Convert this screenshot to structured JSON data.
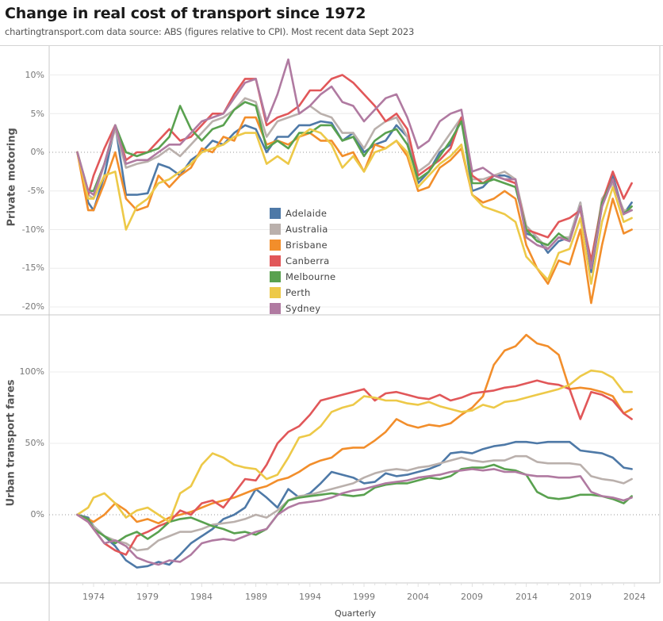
{
  "header": {
    "title": "Change in real cost of transport since 1972",
    "subtitle": "chartingtransport.com  data source: ABS (figures relative to CPI). Most recent data Sept 2023"
  },
  "chart_data": [
    {
      "type": "line",
      "title": "Private motoring",
      "ylabel": "Private motoring",
      "xlabel": "Quarterly",
      "ylim": [
        -20,
        12
      ],
      "yticks": [
        10,
        5,
        0,
        -5,
        -10,
        -15,
        -20
      ],
      "ytick_labels": [
        "10%",
        "5%",
        "0%",
        "-5%",
        "-10%",
        "-15%",
        "-20%"
      ],
      "grid": true,
      "legend_position": "center-bottom",
      "x": [
        1972.5,
        1973.5,
        1974,
        1975,
        1976,
        1977,
        1978,
        1979,
        1980,
        1981,
        1982,
        1983,
        1984,
        1985,
        1986,
        1987,
        1988,
        1989,
        1990,
        1991,
        1992,
        1993,
        1994,
        1995,
        1996,
        1997,
        1998,
        1999,
        2000,
        2001,
        2002,
        2003,
        2004,
        2005,
        2006,
        2007,
        2008,
        2009,
        2010,
        2011,
        2012,
        2013,
        2014,
        2015,
        2016,
        2017,
        2018,
        2019,
        2020,
        2021,
        2022,
        2023,
        2023.75
      ],
      "series": [
        {
          "name": "Adelaide",
          "color": "#4e79a7",
          "values": [
            0,
            -6.5,
            -7.5,
            -3,
            3.5,
            -5.5,
            -5.5,
            -5.3,
            -1.5,
            -2,
            -3,
            -1,
            0,
            1.5,
            1,
            2.5,
            3.5,
            3,
            0,
            2,
            2,
            3.5,
            3.5,
            4,
            3.8,
            1.5,
            2.5,
            0,
            1,
            1.5,
            3.5,
            2,
            -4,
            -2.5,
            0,
            1,
            4.5,
            -5,
            -4.5,
            -3,
            -3,
            -3.5,
            -10.5,
            -11,
            -13,
            -11.5,
            -11,
            -6.5,
            -15.5,
            -7,
            -3,
            -8,
            -6.5
          ]
        },
        {
          "name": "Australia",
          "color": "#bab0ac",
          "values": [
            0,
            -5.5,
            -6,
            -1.5,
            3,
            -2,
            -1.5,
            -1.2,
            -0.5,
            0.5,
            -0.5,
            1,
            2.5,
            4,
            4.5,
            5.5,
            7,
            6.5,
            2,
            4,
            4.5,
            5,
            6,
            5,
            4.5,
            2.5,
            2.5,
            0.5,
            3,
            4,
            4.5,
            2,
            -2.5,
            -1.5,
            0.5,
            2.5,
            4.5,
            -3.5,
            -3.5,
            -3,
            -2.5,
            -3.5,
            -9.5,
            -11,
            -12.5,
            -11,
            -11,
            -6.5,
            -15,
            -6,
            -4,
            -7.5,
            -7.5
          ]
        },
        {
          "name": "Brisbane",
          "color": "#f28e2b",
          "values": [
            0,
            -7.5,
            -7.5,
            -4,
            0,
            -6,
            -7.5,
            -7,
            -3,
            -4.5,
            -3,
            -2,
            0.5,
            0,
            2,
            1.5,
            4.5,
            4.5,
            1,
            1.5,
            1,
            2,
            2.5,
            1.5,
            1.5,
            -0.5,
            0,
            -2.5,
            1,
            0.5,
            1.5,
            -0.5,
            -5,
            -4.5,
            -2,
            -1,
            0.5,
            -5.5,
            -6.5,
            -6,
            -5,
            -6,
            -12,
            -15,
            -17,
            -14,
            -14.5,
            -10,
            -19.5,
            -12,
            -6,
            -10.5,
            -10
          ]
        },
        {
          "name": "Canberra",
          "color": "#e15759",
          "values": [
            0,
            -5.5,
            -3,
            0.5,
            3.5,
            -1,
            0,
            0,
            1.5,
            3,
            1.5,
            2,
            3.5,
            5,
            5,
            7.5,
            9.5,
            9.5,
            3.5,
            4.5,
            5,
            6,
            8,
            8,
            9.5,
            10,
            9,
            7.5,
            6,
            4,
            5,
            3,
            -3,
            -2,
            -1,
            0.5,
            4.5,
            -3,
            -4,
            -3,
            -3.5,
            -4,
            -10,
            -10.5,
            -11,
            -9,
            -8.5,
            -7.5,
            -14,
            -6.5,
            -2.5,
            -6,
            -4
          ]
        },
        {
          "name": "Melbourne",
          "color": "#59a14f",
          "values": [
            0,
            -5,
            -5,
            -1.5,
            3.5,
            0,
            -0.5,
            0,
            0.5,
            2,
            6,
            3,
            1.5,
            3,
            3.5,
            5.5,
            6.5,
            6,
            0.5,
            1.5,
            0.5,
            2.5,
            2.5,
            3.5,
            3.5,
            1.5,
            2,
            -0.5,
            1.5,
            2.5,
            3,
            1,
            -3.5,
            -2.5,
            -0.5,
            1.5,
            4,
            -4,
            -4,
            -3.5,
            -4,
            -4.5,
            -10,
            -11.5,
            -12,
            -10.5,
            -11.5,
            -7,
            -15,
            -6.5,
            -3.5,
            -8,
            -7
          ]
        },
        {
          "name": "Perth",
          "color": "#edc948",
          "values": [
            0,
            -6,
            -6,
            -3,
            -2.5,
            -10,
            -7,
            -6,
            -4,
            -3.5,
            -2.5,
            -1.5,
            0,
            0.5,
            1,
            2,
            2.5,
            2.5,
            -1.5,
            -0.5,
            -1.5,
            2,
            3,
            2.5,
            1,
            -2,
            -0.5,
            -2.5,
            0,
            0.5,
            1.5,
            0,
            -4.5,
            -3,
            -1.5,
            -0.5,
            1,
            -5.5,
            -7,
            -7.5,
            -8,
            -9,
            -13.5,
            -15,
            -16.5,
            -13,
            -12.5,
            -8.5,
            -17,
            -9,
            -4.5,
            -9,
            -8.5
          ]
        },
        {
          "name": "Sydney",
          "color": "#b07aa1",
          "values": [
            0,
            -5,
            -5.5,
            -1.5,
            3.5,
            -1.5,
            -1,
            -1,
            0,
            1,
            1,
            2.5,
            4,
            4.5,
            5,
            7,
            9,
            9.5,
            4,
            7.5,
            12,
            5,
            6,
            7.5,
            8.5,
            6.5,
            6,
            4,
            5.5,
            7,
            7.5,
            4.5,
            0.5,
            1.5,
            4,
            5,
            5.5,
            -2.5,
            -2,
            -3,
            -3.5,
            -3.5,
            -11,
            -12,
            -12.5,
            -11,
            -11.5,
            -7,
            -15,
            -7,
            -3.5,
            -8,
            -7.5
          ]
        }
      ]
    },
    {
      "type": "line",
      "title": "Urban transport fares",
      "ylabel": "Urban transport fares",
      "xlabel": "Quarterly",
      "ylim": [
        -48,
        135
      ],
      "yticks": [
        100,
        50,
        0
      ],
      "ytick_labels": [
        "100%",
        "50%",
        "0%"
      ],
      "grid": true,
      "x": [
        1972.5,
        1973.5,
        1974,
        1975,
        1976,
        1977,
        1978,
        1979,
        1980,
        1981,
        1982,
        1983,
        1984,
        1985,
        1986,
        1987,
        1988,
        1989,
        1990,
        1991,
        1992,
        1993,
        1994,
        1995,
        1996,
        1997,
        1998,
        1999,
        2000,
        2001,
        2002,
        2003,
        2004,
        2005,
        2006,
        2007,
        2008,
        2009,
        2010,
        2011,
        2012,
        2013,
        2014,
        2015,
        2016,
        2017,
        2018,
        2019,
        2020,
        2021,
        2022,
        2023,
        2023.75
      ],
      "series": [
        {
          "name": "Adelaide",
          "color": "#4e79a7",
          "values": [
            0,
            -2,
            -8,
            -15,
            -22,
            -32,
            -37,
            -36,
            -33,
            -35,
            -28,
            -20,
            -15,
            -10,
            -3,
            0,
            5,
            18,
            12,
            5,
            18,
            12,
            15,
            22,
            30,
            28,
            26,
            22,
            23,
            29,
            27,
            28,
            30,
            32,
            35,
            43,
            44,
            43,
            46,
            48,
            49,
            51,
            51,
            50,
            51,
            51,
            51,
            45,
            44,
            43,
            40,
            33,
            32
          ]
        },
        {
          "name": "Australia",
          "color": "#bab0ac",
          "values": [
            0,
            -4,
            -8,
            -15,
            -18,
            -20,
            -25,
            -24,
            -18,
            -15,
            -12,
            -12,
            -10,
            -7,
            -6,
            -5,
            -3,
            0,
            -2,
            3,
            10,
            13,
            14,
            16,
            18,
            20,
            22,
            26,
            29,
            31,
            32,
            31,
            33,
            34,
            36,
            38,
            40,
            38,
            37,
            38,
            38,
            41,
            41,
            37,
            36,
            36,
            36,
            35,
            27,
            25,
            24,
            22,
            25
          ]
        },
        {
          "name": "Brisbane",
          "color": "#f28e2b",
          "values": [
            0,
            -3,
            -5,
            0,
            8,
            3,
            -5,
            -3,
            -6,
            -2,
            0,
            2,
            5,
            8,
            10,
            12,
            15,
            18,
            20,
            24,
            26,
            30,
            35,
            38,
            40,
            46,
            47,
            47,
            52,
            58,
            67,
            63,
            61,
            63,
            62,
            64,
            70,
            75,
            83,
            105,
            115,
            118,
            126,
            120,
            118,
            112,
            88,
            89,
            88,
            86,
            83,
            71,
            74
          ]
        },
        {
          "name": "Canberra",
          "color": "#e15759",
          "values": [
            0,
            -5,
            -10,
            -20,
            -25,
            -28,
            -15,
            -12,
            -8,
            -5,
            3,
            0,
            8,
            10,
            5,
            15,
            25,
            24,
            35,
            50,
            58,
            62,
            70,
            80,
            82,
            84,
            86,
            88,
            80,
            85,
            86,
            84,
            82,
            81,
            84,
            80,
            82,
            85,
            86,
            87,
            89,
            90,
            92,
            94,
            92,
            91,
            88,
            67,
            86,
            84,
            80,
            71,
            67
          ]
        },
        {
          "name": "Melbourne",
          "color": "#59a14f",
          "values": [
            0,
            -3,
            -10,
            -15,
            -20,
            -15,
            -12,
            -17,
            -12,
            -5,
            -3,
            -2,
            -5,
            -8,
            -10,
            -13,
            -12,
            -14,
            -10,
            0,
            10,
            12,
            13,
            14,
            15,
            14,
            13,
            14,
            19,
            21,
            22,
            22,
            24,
            26,
            25,
            27,
            32,
            33,
            33,
            35,
            32,
            31,
            28,
            16,
            12,
            11,
            12,
            14,
            14,
            13,
            11,
            8,
            13
          ]
        },
        {
          "name": "Perth",
          "color": "#edc948",
          "values": [
            0,
            5,
            12,
            15,
            8,
            -2,
            3,
            5,
            0,
            -5,
            15,
            20,
            35,
            43,
            40,
            35,
            33,
            32,
            25,
            28,
            40,
            54,
            56,
            62,
            72,
            75,
            77,
            83,
            82,
            80,
            80,
            78,
            77,
            79,
            76,
            74,
            72,
            73,
            77,
            75,
            79,
            80,
            82,
            84,
            86,
            88,
            91,
            97,
            101,
            100,
            96,
            86,
            86
          ]
        },
        {
          "name": "Sydney",
          "color": "#b07aa1",
          "values": [
            0,
            -5,
            -10,
            -20,
            -18,
            -22,
            -30,
            -33,
            -35,
            -32,
            -33,
            -28,
            -20,
            -18,
            -17,
            -18,
            -15,
            -12,
            -10,
            0,
            5,
            8,
            9,
            10,
            12,
            15,
            17,
            18,
            20,
            22,
            23,
            24,
            26,
            27,
            28,
            30,
            31,
            32,
            31,
            32,
            30,
            30,
            28,
            27,
            27,
            26,
            26,
            27,
            16,
            13,
            12,
            10,
            12
          ]
        }
      ]
    }
  ],
  "x_axis": {
    "label": "Quarterly",
    "ticks": [
      "1974",
      "1979",
      "1984",
      "1989",
      "1994",
      "1999",
      "2004",
      "2009",
      "2014",
      "2019",
      "2024"
    ]
  },
  "legend": {
    "items": [
      {
        "label": "Adelaide",
        "color": "#4e79a7"
      },
      {
        "label": "Australia",
        "color": "#bab0ac"
      },
      {
        "label": "Brisbane",
        "color": "#f28e2b"
      },
      {
        "label": "Canberra",
        "color": "#e15759"
      },
      {
        "label": "Melbourne",
        "color": "#59a14f"
      },
      {
        "label": "Perth",
        "color": "#edc948"
      },
      {
        "label": "Sydney",
        "color": "#b07aa1"
      }
    ]
  }
}
